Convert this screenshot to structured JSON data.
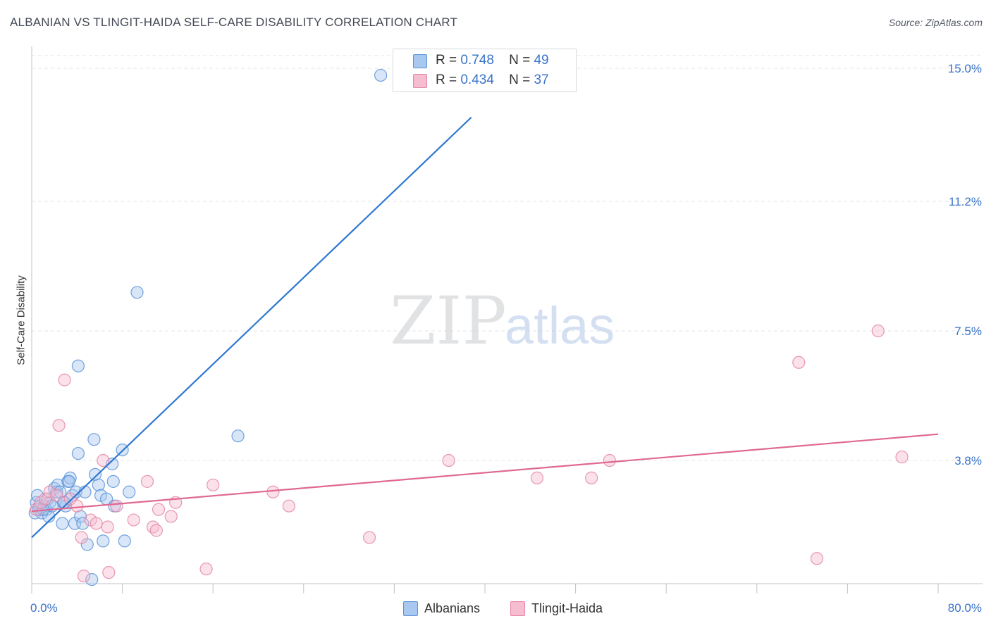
{
  "header": {
    "title": "ALBANIAN VS TLINGIT-HAIDA SELF-CARE DISABILITY CORRELATION CHART",
    "source": "Source: ZipAtlas.com"
  },
  "watermark": {
    "zip": "ZIP",
    "atlas": "atlas"
  },
  "colors": {
    "albanian_fill": "#a9c8f0",
    "albanian_stroke": "#5b93d8",
    "albanian_line": "#2f78d0",
    "tlingit_fill": "#f6bcd0",
    "tlingit_stroke": "#e486a6",
    "tlingit_line": "#e06892",
    "tick_label": "#3a74c9",
    "grid": "#e3e6ea"
  },
  "stats": {
    "albanians": {
      "r_label": "R =",
      "r_value": "0.748",
      "n_label": "N =",
      "n_value": "49"
    },
    "tlingit": {
      "r_label": "R =",
      "r_value": "0.434",
      "n_label": "N =",
      "n_value": "37"
    }
  },
  "chart_data": {
    "type": "scatter",
    "title": "ALBANIAN VS TLINGIT-HAIDA SELF-CARE DISABILITY CORRELATION CHART",
    "xlabel": "",
    "ylabel": "Self-Care Disability",
    "xlim": [
      0,
      80
    ],
    "ylim": [
      0,
      15.6
    ],
    "x_tick_labels": [
      {
        "value": 0,
        "label": "0.0%"
      },
      {
        "value": 80,
        "label": "80.0%"
      }
    ],
    "y_tick_labels": [
      {
        "value": 3.8,
        "label": "3.8%"
      },
      {
        "value": 7.5,
        "label": "7.5%"
      },
      {
        "value": 11.2,
        "label": "11.2%"
      },
      {
        "value": 15.0,
        "label": "15.0%"
      }
    ],
    "x_minor_ticks": [
      0,
      8,
      16,
      24,
      32,
      40,
      48,
      56,
      64,
      72,
      80
    ],
    "grid": true,
    "legend": "bottom-center",
    "series": [
      {
        "name": "Albanians",
        "points": [
          [
            0.3,
            2.3
          ],
          [
            0.4,
            2.6
          ],
          [
            0.5,
            2.8
          ],
          [
            0.6,
            2.4
          ],
          [
            0.7,
            2.5
          ],
          [
            0.9,
            2.3
          ],
          [
            1.1,
            2.5
          ],
          [
            1.3,
            2.4
          ],
          [
            1.4,
            2.7
          ],
          [
            1.5,
            2.2
          ],
          [
            1.6,
            2.6
          ],
          [
            1.8,
            2.5
          ],
          [
            2.0,
            3.0
          ],
          [
            2.2,
            2.9
          ],
          [
            2.3,
            3.1
          ],
          [
            2.5,
            2.9
          ],
          [
            2.7,
            2.0
          ],
          [
            2.8,
            2.6
          ],
          [
            3.0,
            2.5
          ],
          [
            3.2,
            3.2
          ],
          [
            3.4,
            3.3
          ],
          [
            3.6,
            2.8
          ],
          [
            3.8,
            2.0
          ],
          [
            3.9,
            2.9
          ],
          [
            4.1,
            4.0
          ],
          [
            4.3,
            2.2
          ],
          [
            4.5,
            2.0
          ],
          [
            4.7,
            2.9
          ],
          [
            4.9,
            1.4
          ],
          [
            5.3,
            0.4
          ],
          [
            5.5,
            4.4
          ],
          [
            5.6,
            3.4
          ],
          [
            5.9,
            3.1
          ],
          [
            6.1,
            2.8
          ],
          [
            6.3,
            1.5
          ],
          [
            6.6,
            2.7
          ],
          [
            7.1,
            3.7
          ],
          [
            7.3,
            2.5
          ],
          [
            7.2,
            3.2
          ],
          [
            8.2,
            1.5
          ],
          [
            8.6,
            2.9
          ],
          [
            9.3,
            8.6
          ],
          [
            3.3,
            3.2
          ],
          [
            4.1,
            6.5
          ],
          [
            8.0,
            4.1
          ],
          [
            18.2,
            4.5
          ],
          [
            30.8,
            14.8
          ],
          [
            1.0,
            2.4
          ],
          [
            2.9,
            2.6
          ]
        ],
        "trendline": {
          "x": [
            0,
            38.8
          ],
          "y": [
            1.6,
            13.6
          ]
        }
      },
      {
        "name": "Tlingit-Haida",
        "points": [
          [
            0.4,
            2.4
          ],
          [
            0.8,
            2.6
          ],
          [
            1.2,
            2.7
          ],
          [
            1.6,
            2.9
          ],
          [
            2.2,
            2.8
          ],
          [
            2.4,
            4.8
          ],
          [
            2.9,
            6.1
          ],
          [
            3.4,
            2.7
          ],
          [
            4.0,
            2.5
          ],
          [
            4.4,
            1.6
          ],
          [
            4.6,
            0.5
          ],
          [
            5.2,
            2.1
          ],
          [
            5.7,
            2.0
          ],
          [
            6.3,
            3.8
          ],
          [
            6.8,
            0.6
          ],
          [
            6.7,
            1.9
          ],
          [
            7.5,
            2.5
          ],
          [
            9.0,
            2.1
          ],
          [
            10.2,
            3.2
          ],
          [
            10.7,
            1.9
          ],
          [
            11.0,
            1.8
          ],
          [
            11.2,
            2.4
          ],
          [
            12.3,
            2.2
          ],
          [
            12.7,
            2.6
          ],
          [
            15.4,
            0.7
          ],
          [
            16.0,
            3.1
          ],
          [
            21.3,
            2.9
          ],
          [
            22.7,
            2.5
          ],
          [
            29.8,
            1.6
          ],
          [
            36.8,
            3.8
          ],
          [
            44.6,
            3.3
          ],
          [
            49.4,
            3.3
          ],
          [
            51.0,
            3.8
          ],
          [
            67.7,
            6.6
          ],
          [
            69.3,
            1.0
          ],
          [
            74.7,
            7.5
          ],
          [
            76.8,
            3.9
          ]
        ],
        "trendline": {
          "x": [
            0,
            80
          ],
          "y": [
            2.35,
            4.55
          ]
        }
      }
    ]
  },
  "legend": {
    "albanians": "Albanians",
    "tlingit": "Tlingit-Haida"
  }
}
